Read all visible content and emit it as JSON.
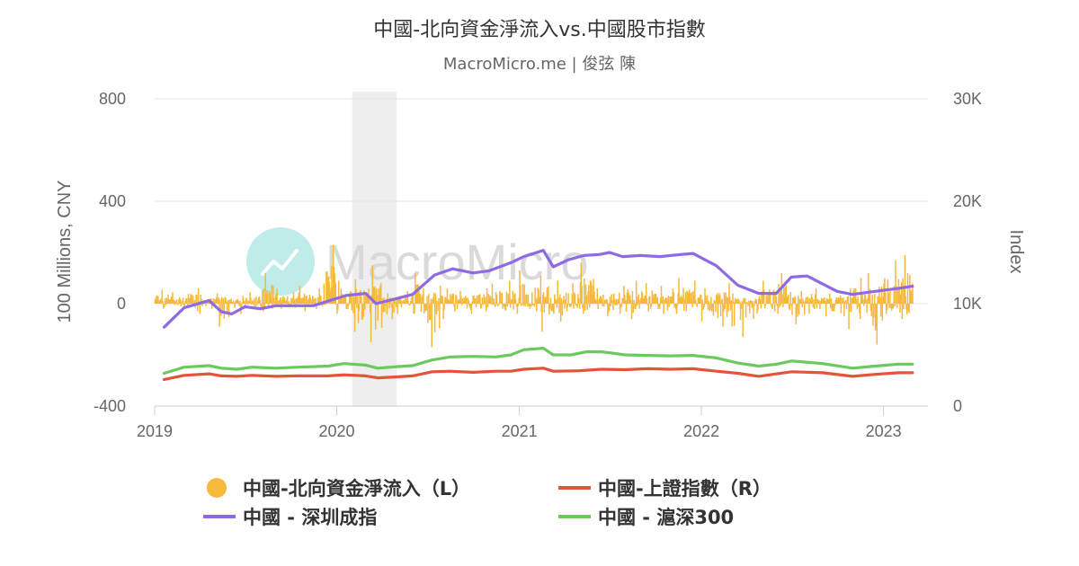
{
  "chart_data": {
    "type": "bar+line",
    "title": "中國-北向資金淨流入vs.中國股市指數",
    "subtitle": "MacroMicro.me | 俊弦 陳",
    "watermark": "MacroMicro",
    "y_left": {
      "label": "100 Millions, CNY",
      "range": [
        -400,
        800
      ],
      "ticks": [
        "800",
        "400",
        "0",
        "-400"
      ]
    },
    "y_right": {
      "label": "Index",
      "range": [
        0,
        30000
      ],
      "ticks": [
        "30K",
        "20K",
        "10K",
        "0"
      ]
    },
    "x_axis": {
      "range": [
        "2019-01-01",
        "2023-03-31"
      ],
      "ticks": [
        "2019",
        "2020",
        "2021",
        "2022",
        "2023"
      ]
    },
    "shaded_period": [
      "2020-02-01",
      "2020-04-30"
    ],
    "grid": true,
    "legend_position": "bottom",
    "legend": [
      {
        "label": "中國-北向資金淨流入（L）",
        "color": "#f6b93b",
        "marker": "circle"
      },
      {
        "label": "中國-上證指數（R）",
        "color": "#e5533b",
        "marker": "line"
      },
      {
        "label": "中國 - 深圳成指",
        "color": "#8e6be3",
        "marker": "line"
      },
      {
        "label": "中國 - 滬深300",
        "color": "#6cc95e",
        "marker": "line"
      }
    ],
    "series": [
      {
        "name": "中國-北向資金淨流入（L）",
        "axis": "left",
        "kind": "bar",
        "color": "#f6b93b",
        "x": [
          "2019-01",
          "2019-02",
          "2019-03",
          "2019-04",
          "2019-05",
          "2019-06",
          "2019-07",
          "2019-08",
          "2019-09",
          "2019-10",
          "2019-11",
          "2019-12",
          "2020-01",
          "2020-02",
          "2020-03",
          "2020-04",
          "2020-05",
          "2020-06",
          "2020-07",
          "2020-08",
          "2020-09",
          "2020-10",
          "2020-11",
          "2020-12",
          "2021-01",
          "2021-02",
          "2021-03",
          "2021-04",
          "2021-05",
          "2021-06",
          "2021-07",
          "2021-08",
          "2021-09",
          "2021-10",
          "2021-11",
          "2021-12",
          "2022-01",
          "2022-02",
          "2022-03",
          "2022-04",
          "2022-05",
          "2022-06",
          "2022-07",
          "2022-08",
          "2022-09",
          "2022-10",
          "2022-11",
          "2022-12",
          "2023-01",
          "2023-02"
        ],
        "max": [
          55,
          45,
          60,
          35,
          40,
          30,
          45,
          120,
          60,
          70,
          60,
          230,
          90,
          95,
          150,
          40,
          50,
          120,
          70,
          60,
          50,
          60,
          80,
          90,
          130,
          110,
          90,
          80,
          160,
          60,
          70,
          90,
          80,
          70,
          100,
          90,
          60,
          80,
          40,
          30,
          90,
          120,
          50,
          60,
          40,
          60,
          100,
          120,
          170,
          190
        ],
        "min": [
          -20,
          -10,
          -30,
          -40,
          -90,
          -40,
          -20,
          -30,
          -20,
          -30,
          -20,
          -10,
          -40,
          -110,
          -150,
          -60,
          -40,
          -70,
          -170,
          -60,
          -40,
          -30,
          -20,
          -40,
          -20,
          -110,
          -70,
          -30,
          -40,
          -50,
          -40,
          -60,
          -30,
          -40,
          -40,
          -30,
          -70,
          -90,
          -130,
          -60,
          -30,
          -40,
          -80,
          -40,
          -50,
          -100,
          -60,
          -160,
          -40,
          -60
        ]
      },
      {
        "name": "中國 - 深圳成指",
        "axis": "right",
        "kind": "line",
        "color": "#8e6be3",
        "x": [
          "2019-01-20",
          "2019-03-01",
          "2019-04-20",
          "2019-05-15",
          "2019-06-05",
          "2019-07-01",
          "2019-08-01",
          "2019-09-01",
          "2019-10-01",
          "2019-11-15",
          "2019-12-31",
          "2020-01-20",
          "2020-02-28",
          "2020-03-20",
          "2020-04-30",
          "2020-06-01",
          "2020-07-15",
          "2020-08-20",
          "2020-09-30",
          "2020-11-01",
          "2020-12-15",
          "2021-01-10",
          "2021-02-18",
          "2021-03-10",
          "2021-04-10",
          "2021-05-10",
          "2021-06-10",
          "2021-07-01",
          "2021-07-27",
          "2021-09-01",
          "2021-10-10",
          "2021-11-20",
          "2021-12-15",
          "2022-01-31",
          "2022-03-15",
          "2022-04-26",
          "2022-05-31",
          "2022-06-30",
          "2022-08-01",
          "2022-09-30",
          "2022-10-31",
          "2022-12-15",
          "2023-01-31",
          "2023-02-28"
        ],
        "values": [
          7700,
          9600,
          10300,
          9200,
          9000,
          9700,
          9500,
          9800,
          9800,
          9800,
          10500,
          10800,
          11000,
          10000,
          10500,
          10900,
          12800,
          13400,
          13000,
          13200,
          14000,
          14600,
          15200,
          13600,
          14300,
          14700,
          14800,
          15000,
          14600,
          14700,
          14600,
          14800,
          14900,
          13700,
          11800,
          11000,
          11000,
          12600,
          12700,
          11200,
          10900,
          11200,
          11500,
          11700
        ]
      },
      {
        "name": "中國 - 滬深300",
        "axis": "right",
        "kind": "line",
        "color": "#6cc95e",
        "x": [
          "2019-01-20",
          "2019-03-01",
          "2019-04-20",
          "2019-05-15",
          "2019-06-15",
          "2019-07-15",
          "2019-09-01",
          "2019-10-15",
          "2019-12-15",
          "2020-01-15",
          "2020-02-28",
          "2020-03-23",
          "2020-04-30",
          "2020-06-01",
          "2020-07-10",
          "2020-08-15",
          "2020-10-01",
          "2020-11-15",
          "2020-12-15",
          "2021-01-10",
          "2021-02-18",
          "2021-03-10",
          "2021-04-15",
          "2021-05-15",
          "2021-06-15",
          "2021-07-01",
          "2021-08-01",
          "2021-09-15",
          "2021-11-01",
          "2021-12-15",
          "2022-01-31",
          "2022-03-15",
          "2022-04-26",
          "2022-06-01",
          "2022-07-01",
          "2022-09-01",
          "2022-10-31",
          "2022-12-15",
          "2023-01-31",
          "2023-02-28"
        ],
        "values": [
          3200,
          3800,
          3950,
          3700,
          3600,
          3800,
          3700,
          3800,
          3900,
          4150,
          4000,
          3700,
          3850,
          3950,
          4500,
          4800,
          4850,
          4800,
          5000,
          5500,
          5650,
          5000,
          5000,
          5300,
          5300,
          5200,
          5000,
          4950,
          4900,
          4950,
          4700,
          4200,
          3900,
          4100,
          4400,
          4150,
          3700,
          3900,
          4100,
          4100
        ]
      },
      {
        "name": "中國-上證指數（R）",
        "axis": "right",
        "kind": "line",
        "color": "#e5533b",
        "x": [
          "2019-01-20",
          "2019-03-01",
          "2019-04-20",
          "2019-05-15",
          "2019-06-15",
          "2019-07-15",
          "2019-09-01",
          "2019-10-15",
          "2019-12-15",
          "2020-01-15",
          "2020-02-28",
          "2020-03-23",
          "2020-04-30",
          "2020-06-01",
          "2020-07-10",
          "2020-08-15",
          "2020-10-01",
          "2020-11-15",
          "2020-12-15",
          "2021-01-10",
          "2021-02-18",
          "2021-03-10",
          "2021-05-01",
          "2021-06-15",
          "2021-08-01",
          "2021-09-15",
          "2021-11-01",
          "2021-12-15",
          "2022-01-31",
          "2022-03-15",
          "2022-04-26",
          "2022-06-01",
          "2022-07-01",
          "2022-09-01",
          "2022-10-31",
          "2022-12-15",
          "2023-01-31",
          "2023-02-28"
        ],
        "values": [
          2600,
          3000,
          3150,
          2950,
          2900,
          3000,
          2900,
          2950,
          2950,
          3050,
          2950,
          2750,
          2850,
          2950,
          3350,
          3400,
          3300,
          3400,
          3400,
          3600,
          3700,
          3400,
          3450,
          3600,
          3550,
          3650,
          3600,
          3650,
          3400,
          3200,
          2900,
          3150,
          3350,
          3250,
          2900,
          3100,
          3250,
          3250
        ]
      }
    ]
  }
}
